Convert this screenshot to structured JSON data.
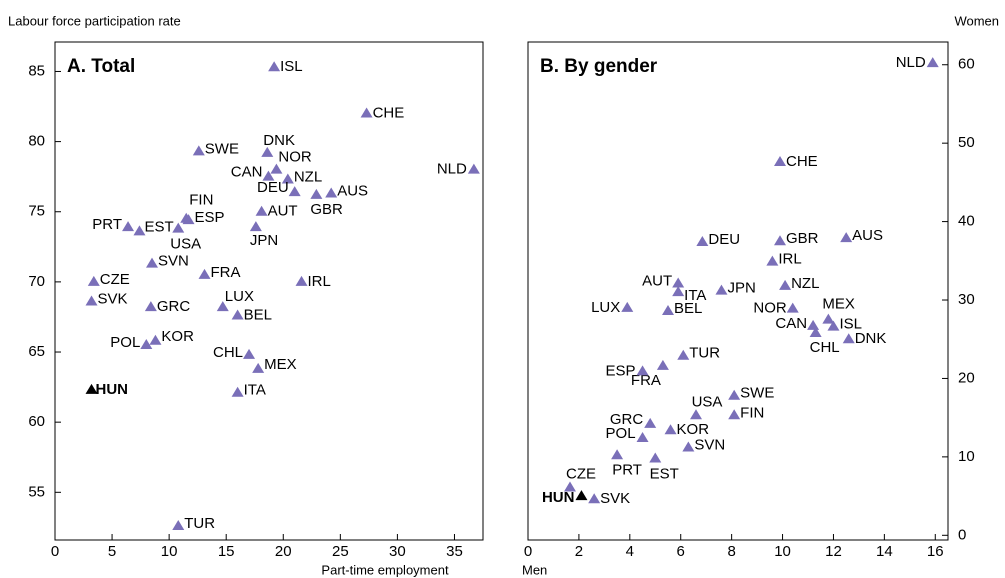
{
  "chart_data": [
    {
      "type": "scatter",
      "title": "A. Total",
      "xlabel": "Part-time employment",
      "ylabel": "Labour force participation rate",
      "xlim": [
        0,
        37.5
      ],
      "ylim": [
        51.6,
        87.1
      ],
      "xticks": [
        0,
        5,
        10,
        15,
        20,
        25,
        30,
        35
      ],
      "yticks": [
        55,
        60,
        65,
        70,
        75,
        80,
        85
      ],
      "y_axis_side": "left",
      "labels": [
        "ISL",
        "CHE",
        "NLD",
        "DNK",
        "SWE",
        "NOR",
        "CAN",
        "NZL",
        "DEU",
        "GBR",
        "AUS",
        "FIN",
        "ESP",
        "PRT",
        "EST",
        "USA",
        "AUT",
        "JPN",
        "SVN",
        "FRA",
        "CZE",
        "IRL",
        "SVK",
        "GRC",
        "LUX",
        "BEL",
        "POL",
        "KOR",
        "CHL",
        "MEX",
        "HUN",
        "ITA",
        "TUR"
      ],
      "x": [
        19.2,
        27.3,
        36.7,
        18.6,
        12.6,
        19.4,
        18.7,
        20.4,
        21.0,
        22.9,
        24.2,
        11.5,
        11.7,
        6.4,
        7.4,
        10.8,
        18.1,
        17.6,
        8.5,
        13.1,
        3.4,
        21.6,
        3.2,
        8.4,
        14.7,
        16.0,
        8.0,
        8.8,
        17.0,
        17.8,
        3.2,
        16.0,
        10.8
      ],
      "values": [
        85.3,
        82.0,
        78.0,
        79.2,
        79.3,
        78.0,
        77.5,
        77.3,
        76.4,
        76.2,
        76.3,
        74.5,
        74.4,
        73.9,
        73.6,
        73.8,
        75.0,
        73.9,
        71.3,
        70.5,
        70.0,
        70.0,
        68.6,
        68.2,
        68.2,
        67.6,
        65.5,
        65.8,
        64.8,
        63.8,
        62.3,
        62.1,
        52.6
      ],
      "colors": [
        "#7a6fb8",
        "#7a6fb8",
        "#7a6fb8",
        "#7a6fb8",
        "#7a6fb8",
        "#7a6fb8",
        "#7a6fb8",
        "#7a6fb8",
        "#7a6fb8",
        "#7a6fb8",
        "#7a6fb8",
        "#7a6fb8",
        "#7a6fb8",
        "#7a6fb8",
        "#7a6fb8",
        "#7a6fb8",
        "#7a6fb8",
        "#7a6fb8",
        "#7a6fb8",
        "#7a6fb8",
        "#7a6fb8",
        "#7a6fb8",
        "#7a6fb8",
        "#7a6fb8",
        "#7a6fb8",
        "#7a6fb8",
        "#7a6fb8",
        "#7a6fb8",
        "#7a6fb8",
        "#7a6fb8",
        "#000000",
        "#7a6fb8",
        "#7a6fb8"
      ]
    },
    {
      "type": "scatter",
      "title": "B. By gender",
      "xlabel": "Men",
      "ylabel": "Women",
      "xlim": [
        0,
        16.5
      ],
      "ylim": [
        -0.6,
        62.9
      ],
      "xticks": [
        0,
        2,
        4,
        6,
        8,
        10,
        12,
        14,
        16
      ],
      "yticks": [
        0,
        10,
        20,
        30,
        40,
        50,
        60
      ],
      "y_axis_side": "right",
      "labels": [
        "NLD",
        "CHE",
        "DEU",
        "GBR",
        "AUS",
        "IRL",
        "AUT",
        "ITA",
        "JPN",
        "NZL",
        "LUX",
        "BEL",
        "NOR",
        "MEX",
        "ISL",
        "CAN",
        "CHL",
        "DNK",
        "TUR",
        "FRA",
        "ESP",
        "SWE",
        "FIN",
        "USA",
        "GRC",
        "KOR",
        "POL",
        "SVN",
        "PRT",
        "EST",
        "CZE",
        "HUN",
        "SVK"
      ],
      "x": [
        15.9,
        9.9,
        6.85,
        9.9,
        12.5,
        9.6,
        5.9,
        5.9,
        7.6,
        10.1,
        3.9,
        5.5,
        10.4,
        11.8,
        12.0,
        11.2,
        11.3,
        12.6,
        6.1,
        5.3,
        4.5,
        8.1,
        8.1,
        6.6,
        4.8,
        5.6,
        4.5,
        6.3,
        3.5,
        5.0,
        1.65,
        2.1,
        2.6
      ],
      "values": [
        60.2,
        47.6,
        37.4,
        37.5,
        37.9,
        34.9,
        32.1,
        31.0,
        31.2,
        31.8,
        29.0,
        28.6,
        28.9,
        27.5,
        26.6,
        26.7,
        25.8,
        25.0,
        22.9,
        21.6,
        20.9,
        17.8,
        15.3,
        15.3,
        14.2,
        13.4,
        12.4,
        11.2,
        10.2,
        9.8,
        6.1,
        5.0,
        4.6
      ],
      "colors": [
        "#7a6fb8",
        "#7a6fb8",
        "#7a6fb8",
        "#7a6fb8",
        "#7a6fb8",
        "#7a6fb8",
        "#7a6fb8",
        "#7a6fb8",
        "#7a6fb8",
        "#7a6fb8",
        "#7a6fb8",
        "#7a6fb8",
        "#7a6fb8",
        "#7a6fb8",
        "#7a6fb8",
        "#7a6fb8",
        "#7a6fb8",
        "#7a6fb8",
        "#7a6fb8",
        "#7a6fb8",
        "#7a6fb8",
        "#7a6fb8",
        "#7a6fb8",
        "#7a6fb8",
        "#7a6fb8",
        "#7a6fb8",
        "#7a6fb8",
        "#7a6fb8",
        "#7a6fb8",
        "#7a6fb8",
        "#7a6fb8",
        "#000000",
        "#7a6fb8"
      ]
    }
  ]
}
